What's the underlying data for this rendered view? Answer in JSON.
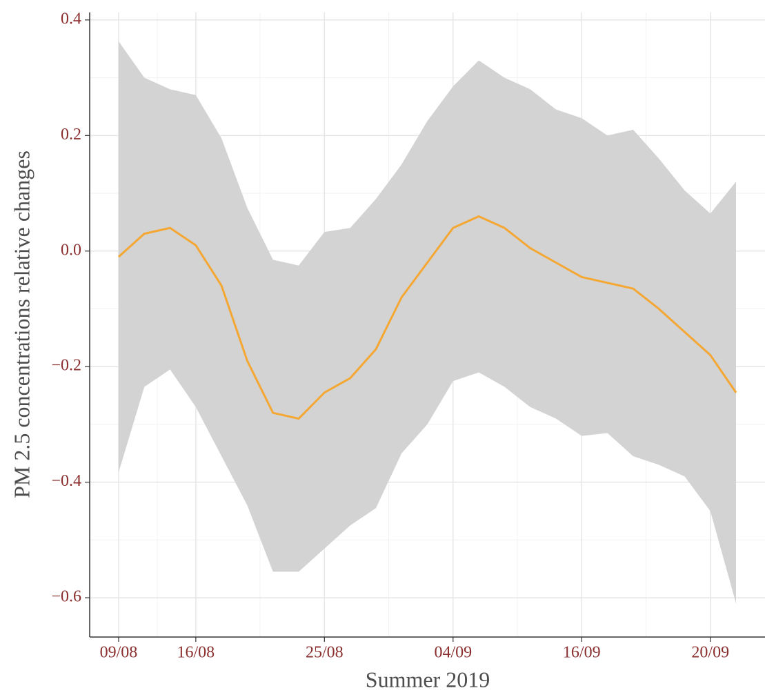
{
  "chart_data": {
    "type": "line",
    "x_label": "Summer 2019",
    "y_label": "PM 2.5 concentrations relative changes",
    "x": [
      0,
      2,
      4,
      6,
      8,
      10,
      12,
      14,
      16,
      18,
      20,
      22,
      24,
      26,
      28,
      30,
      32,
      34,
      36,
      38,
      40,
      42,
      44,
      46,
      48
    ],
    "values": [
      -0.01,
      0.03,
      0.04,
      0.01,
      -0.06,
      -0.19,
      -0.28,
      -0.29,
      -0.245,
      -0.22,
      -0.17,
      -0.08,
      -0.02,
      0.04,
      0.06,
      0.04,
      0.005,
      -0.02,
      -0.045,
      -0.055,
      -0.065,
      -0.1,
      -0.14,
      -0.18,
      -0.245
    ],
    "upper": [
      0.363,
      0.3,
      0.28,
      0.27,
      0.195,
      0.075,
      -0.015,
      -0.025,
      0.033,
      0.04,
      0.09,
      0.15,
      0.225,
      0.285,
      0.33,
      0.3,
      0.28,
      0.245,
      0.23,
      0.2,
      0.21,
      0.16,
      0.105,
      0.065,
      0.12
    ],
    "lower": [
      -0.383,
      -0.235,
      -0.205,
      -0.27,
      -0.355,
      -0.44,
      -0.555,
      -0.555,
      -0.515,
      -0.475,
      -0.445,
      -0.35,
      -0.3,
      -0.225,
      -0.21,
      -0.235,
      -0.27,
      -0.29,
      -0.32,
      -0.315,
      -0.355,
      -0.37,
      -0.39,
      -0.45,
      -0.61
    ],
    "color": "#f5a733",
    "band_color": "#d3d3d3",
    "xlim": [
      -2.25,
      50.25
    ],
    "ylim": [
      -0.668,
      0.413
    ],
    "xticks": [
      {
        "value": 0,
        "label": "09/08"
      },
      {
        "value": 6,
        "label": "16/08"
      },
      {
        "value": 16,
        "label": "25/08"
      },
      {
        "value": 26,
        "label": "04/09"
      },
      {
        "value": 36,
        "label": "16/09"
      },
      {
        "value": 46,
        "label": "20/09"
      }
    ],
    "yticks": [
      {
        "value": -0.6,
        "label": "−0.6"
      },
      {
        "value": -0.4,
        "label": "−0.4"
      },
      {
        "value": -0.2,
        "label": "−0.2"
      },
      {
        "value": 0,
        "label": "0.0"
      },
      {
        "value": 0.2,
        "label": "0.2"
      },
      {
        "value": 0.4,
        "label": "0.4"
      }
    ],
    "grid": true
  }
}
